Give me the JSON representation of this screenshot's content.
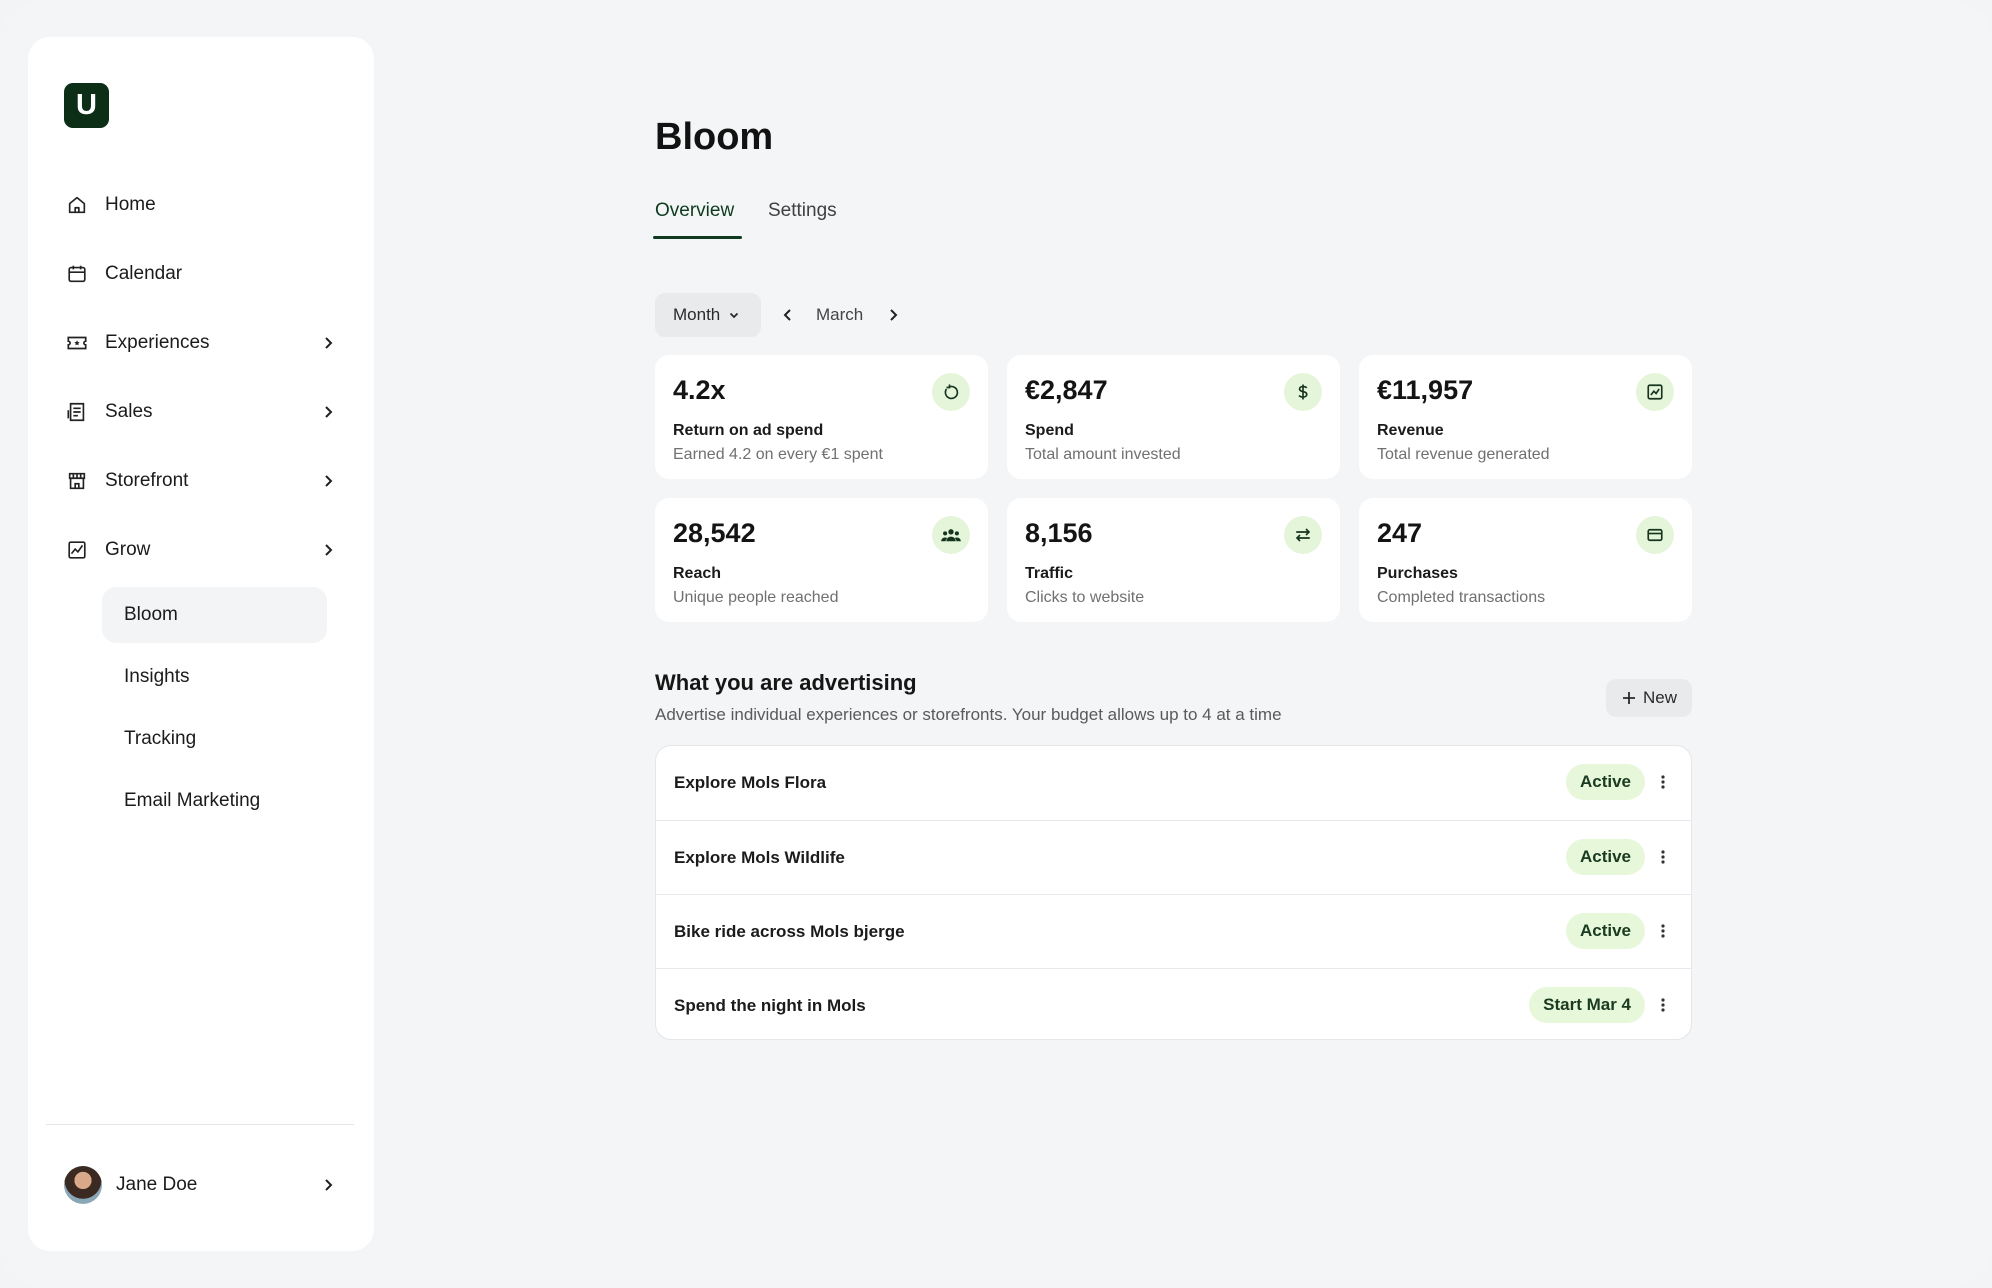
{
  "brand": {
    "logo_letter": "U"
  },
  "sidebar": {
    "items": [
      {
        "label": "Home",
        "icon": "home-icon"
      },
      {
        "label": "Calendar",
        "icon": "calendar-icon"
      },
      {
        "label": "Experiences",
        "icon": "ticket-star-icon",
        "has_chevron": true
      },
      {
        "label": "Sales",
        "icon": "receipt-icon",
        "has_chevron": true
      },
      {
        "label": "Storefront",
        "icon": "storefront-icon",
        "has_chevron": true
      },
      {
        "label": "Grow",
        "icon": "chart-icon",
        "has_chevron": true
      }
    ],
    "sub_items": [
      {
        "label": "Bloom",
        "active": true
      },
      {
        "label": "Insights"
      },
      {
        "label": "Tracking"
      },
      {
        "label": "Email Marketing"
      }
    ],
    "user": {
      "name": "Jane Doe"
    }
  },
  "page": {
    "title": "Bloom",
    "tabs": [
      {
        "label": "Overview",
        "active": true
      },
      {
        "label": "Settings"
      }
    ],
    "period": {
      "unit": "Month",
      "current": "March"
    }
  },
  "metrics": [
    {
      "value": "4.2x",
      "label": "Return on ad spend",
      "desc": "Earned 4.2 on every €1 spent",
      "icon": "refresh-icon"
    },
    {
      "value": "€2,847",
      "label": "Spend",
      "desc": "Total amount invested",
      "icon": "dollar-icon"
    },
    {
      "value": "€11,957",
      "label": "Revenue",
      "desc": "Total revenue generated",
      "icon": "chart-box-icon"
    },
    {
      "value": "28,542",
      "label": "Reach",
      "desc": "Unique people reached",
      "icon": "people-icon"
    },
    {
      "value": "8,156",
      "label": "Traffic",
      "desc": "Clicks to website",
      "icon": "arrows-swap-icon"
    },
    {
      "value": "247",
      "label": "Purchases",
      "desc": "Completed transactions",
      "icon": "credit-card-icon"
    }
  ],
  "advertising": {
    "title": "What you are advertising",
    "subtitle": "Advertise individual experiences or storefronts. Your budget allows up to 4 at a time",
    "new_label": "New",
    "rows": [
      {
        "title": "Explore Mols Flora",
        "status": "Active"
      },
      {
        "title": "Explore Mols Wildlife",
        "status": "Active"
      },
      {
        "title": "Bike ride across Mols bjerge",
        "status": "Active"
      },
      {
        "title": "Spend the night in Mols",
        "status": "Start Mar 4"
      }
    ]
  },
  "colors": {
    "brand_dark": "#0c2e17",
    "accent_green": "#0e3b1f",
    "status_bg": "#e7f7da",
    "icon_bg": "#e5f5d9",
    "page_bg": "#f3f5f6"
  }
}
